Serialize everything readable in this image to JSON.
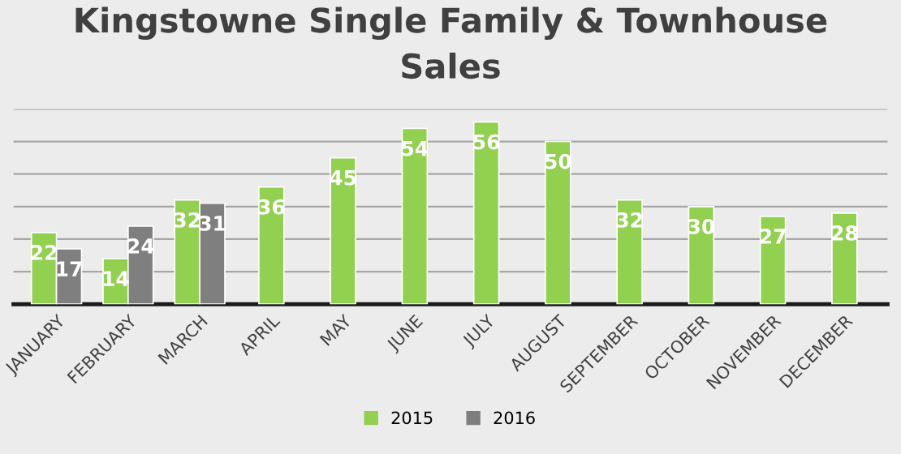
{
  "chart_data": {
    "type": "bar",
    "title": "Kingstowne Single Family & Townhouse\nSales",
    "categories": [
      "JANUARY",
      "FEBRUARY",
      "MARCH",
      "APRIL",
      "MAY",
      "JUNE",
      "JULY",
      "AUGUST",
      "SEPTEMBER",
      "OCTOBER",
      "NOVEMBER",
      "DECEMBER"
    ],
    "series": [
      {
        "name": "2015",
        "color": "#92d050",
        "values": [
          22,
          14,
          32,
          36,
          45,
          54,
          56,
          50,
          32,
          30,
          27,
          28
        ]
      },
      {
        "name": "2016",
        "color": "#7f7f7f",
        "values": [
          17,
          24,
          31,
          null,
          null,
          null,
          null,
          null,
          null,
          null,
          null,
          null
        ]
      }
    ],
    "ylim": [
      0,
      60
    ],
    "yticks": [
      {
        "value": 0,
        "label": null
      },
      {
        "value": 10,
        "label": null
      },
      {
        "value": 20,
        "label": null
      },
      {
        "value": 30,
        "label": null
      },
      {
        "value": 40,
        "label": null
      },
      {
        "value": 50,
        "label": null
      },
      {
        "value": 60,
        "label": null
      }
    ],
    "grid": "y",
    "legend": "bottom",
    "data_labels": true,
    "tick_labels": "x"
  }
}
